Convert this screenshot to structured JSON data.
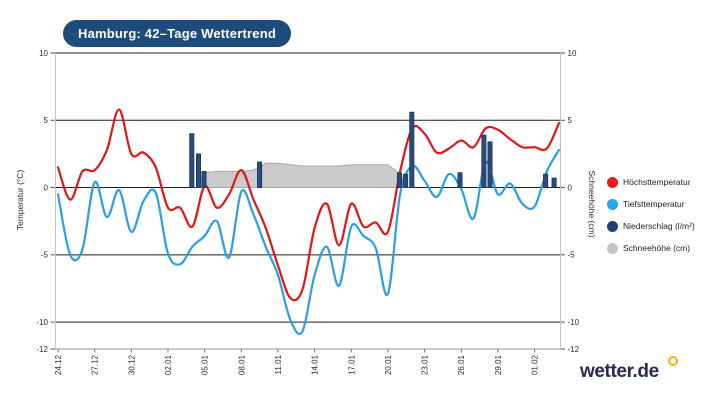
{
  "header": {
    "title": "Hamburg: 42–Tage Wettertrend"
  },
  "footer": {
    "logo_text": "wetter.de",
    "logo_ring_color": "#f9ae17"
  },
  "chart_data": {
    "type": "line",
    "title": "Hamburg: 42–Tage Wettertrend",
    "ylabel_left": "Temperatur (°C)",
    "ylabel_right": "Schneehöhe (cm)",
    "ylim": [
      -12,
      10
    ],
    "y_ticks": [
      10,
      5,
      0,
      -5,
      -10,
      -12
    ],
    "y_tick_labels": [
      "10",
      "5",
      "0",
      "-5",
      "-10",
      "-12"
    ],
    "grid": true,
    "legend_position": "right",
    "x_tick_labels": [
      "24.12",
      "27.12",
      "30.12",
      "02.01",
      "05.01",
      "08.01",
      "11.01",
      "14.01",
      "17.01",
      "20.01",
      "23.01",
      "26.01",
      "29.01",
      "01.02"
    ],
    "dates": [
      "24.12",
      "25.12",
      "26.12",
      "27.12",
      "28.12",
      "29.12",
      "30.12",
      "31.12",
      "01.01",
      "02.01",
      "03.01",
      "04.01",
      "05.01",
      "06.01",
      "07.01",
      "08.01",
      "09.01",
      "10.01",
      "11.01",
      "12.01",
      "13.01",
      "14.01",
      "15.01",
      "16.01",
      "17.01",
      "18.01",
      "19.01",
      "20.01",
      "21.01",
      "22.01",
      "23.01",
      "24.01",
      "25.01",
      "26.01",
      "27.01",
      "28.01",
      "29.01",
      "30.01",
      "31.01",
      "01.02",
      "02.02",
      "03.02"
    ],
    "series": [
      {
        "name": "Höchsttemperatur",
        "type": "line",
        "color": "#e31515",
        "values": [
          1.5,
          -0.9,
          1.2,
          1.3,
          2.8,
          5.8,
          2.5,
          2.6,
          1.5,
          -1.5,
          -1.5,
          -2.9,
          0.1,
          -1.5,
          -0.5,
          1.3,
          -0.9,
          -3.0,
          -5.8,
          -8.2,
          -7.6,
          -3.0,
          -1.2,
          -4.3,
          -1.2,
          -2.9,
          -2.6,
          -3.3,
          1.2,
          4.4,
          4.0,
          2.6,
          2.9,
          3.5,
          3.0,
          4.4,
          4.3,
          3.6,
          3.0,
          3.0,
          2.9,
          4.8
        ]
      },
      {
        "name": "Tiefsttemperatur",
        "type": "line",
        "color": "#2b9fe6",
        "values": [
          -0.5,
          -5.0,
          -4.6,
          0.4,
          -2.2,
          -0.2,
          -3.3,
          -1.0,
          -0.4,
          -4.9,
          -5.7,
          -4.4,
          -3.6,
          -2.5,
          -5.2,
          -0.3,
          -2.0,
          -4.4,
          -6.5,
          -9.8,
          -10.7,
          -6.5,
          -4.4,
          -7.3,
          -2.9,
          -3.6,
          -4.5,
          -7.9,
          -0.5,
          1.6,
          0.5,
          -0.7,
          1.0,
          -0.1,
          -2.3,
          1.9,
          -0.5,
          0.3,
          -1.2,
          -1.4,
          1.2,
          2.8
        ]
      },
      {
        "name": "Niederschlag (l/m²)",
        "type": "bar",
        "color": "#2b4c7d",
        "points": [
          {
            "date": "04.01",
            "day": 10.95,
            "value": 4.0
          },
          {
            "date": "04.01",
            "day": 11.5,
            "value": 2.5
          },
          {
            "date": "05.01",
            "day": 11.95,
            "value": 1.2
          },
          {
            "date": "10.01",
            "day": 16.5,
            "value": 1.9
          },
          {
            "date": "21.01",
            "day": 27.95,
            "value": 1.1
          },
          {
            "date": "21.01",
            "day": 28.45,
            "value": 1.0
          },
          {
            "date": "22.01",
            "day": 28.95,
            "value": 5.6
          },
          {
            "date": "26.01",
            "day": 32.9,
            "value": 1.1
          },
          {
            "date": "28.01",
            "day": 34.85,
            "value": 3.9
          },
          {
            "date": "28.01",
            "day": 35.35,
            "value": 3.4
          },
          {
            "date": "02.02",
            "day": 39.9,
            "value": 1.0
          },
          {
            "date": "03.02",
            "day": 40.6,
            "value": 0.7
          }
        ]
      },
      {
        "name": "Schneehöhe (cm)",
        "type": "area",
        "color": "#cbcbcb",
        "values": [
          0,
          0,
          0,
          0,
          0,
          0,
          0,
          0,
          0,
          0,
          0,
          0,
          1.1,
          1.2,
          1.2,
          1.2,
          1.3,
          1.8,
          1.8,
          1.7,
          1.6,
          1.6,
          1.6,
          1.6,
          1.7,
          1.7,
          1.7,
          1.7,
          1.0,
          0,
          0,
          0,
          0,
          0,
          0,
          0,
          0,
          0,
          0,
          0,
          0,
          0
        ]
      }
    ],
    "legend": [
      {
        "label": "Höchsttemperatur",
        "color": "#e8191f"
      },
      {
        "label": "Tiefsttemperatur",
        "color": "#2aa3e8"
      },
      {
        "label": "Niederschlag (l/m²)",
        "color": "#1e3f72"
      },
      {
        "label": "Schneehöhe (cm)",
        "color": "#c4c4c4"
      }
    ]
  }
}
